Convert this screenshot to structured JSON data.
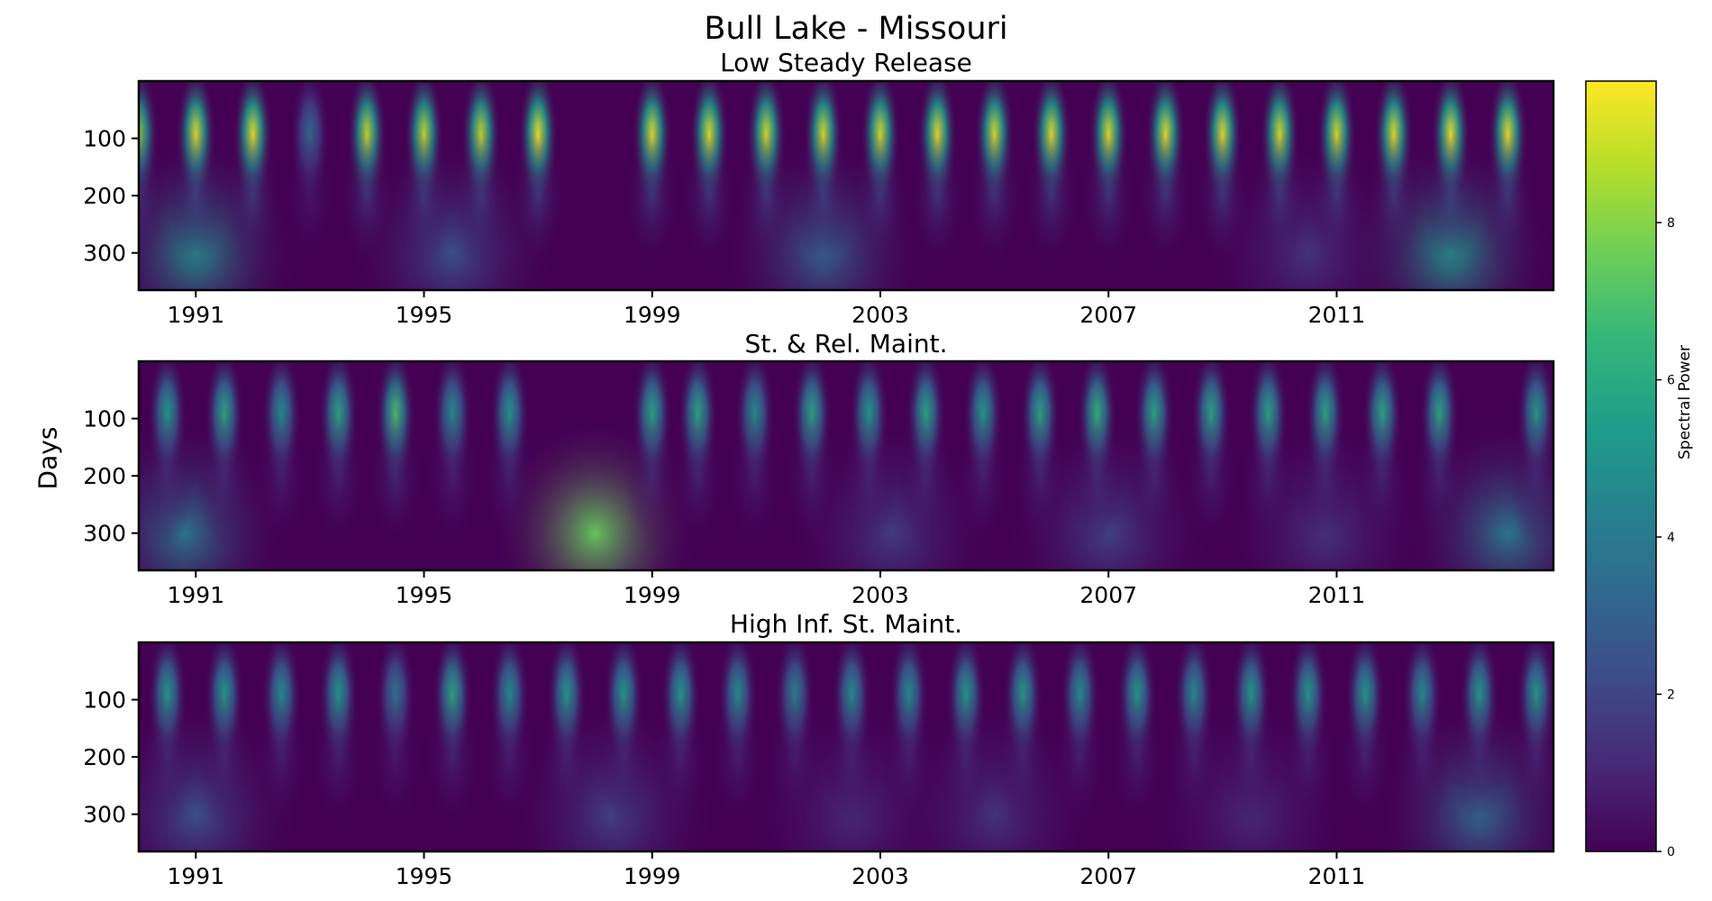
{
  "figure": {
    "title": "Bull Lake - Missouri",
    "ylabel": "Days"
  },
  "chart_data": [
    {
      "type": "heatmap",
      "title": "Low Steady Release",
      "x_ticks": [
        "1991",
        "1995",
        "1999",
        "2003",
        "2007",
        "2011"
      ],
      "y_ticks": [
        "100",
        "200",
        "300"
      ],
      "xlim": [
        1990,
        2014.8
      ],
      "ylim": [
        365,
        0
      ],
      "peaks": [
        {
          "x": 1990.0,
          "amp": 8.2
        },
        {
          "x": 1991.0,
          "amp": 9.5
        },
        {
          "x": 1992.0,
          "amp": 9.6
        },
        {
          "x": 1993.0,
          "amp": 3.5
        },
        {
          "x": 1994.0,
          "amp": 9.0
        },
        {
          "x": 1995.0,
          "amp": 9.0
        },
        {
          "x": 1996.0,
          "amp": 9.0
        },
        {
          "x": 1997.0,
          "amp": 9.8
        },
        {
          "x": 1999.0,
          "amp": 9.5
        },
        {
          "x": 2000.0,
          "amp": 9.5
        },
        {
          "x": 2001.0,
          "amp": 9.3
        },
        {
          "x": 2002.0,
          "amp": 9.3
        },
        {
          "x": 2003.0,
          "amp": 9.3
        },
        {
          "x": 2004.0,
          "amp": 9.5
        },
        {
          "x": 2005.0,
          "amp": 9.3
        },
        {
          "x": 2006.0,
          "amp": 9.5
        },
        {
          "x": 2007.0,
          "amp": 9.5
        },
        {
          "x": 2008.0,
          "amp": 9.5
        },
        {
          "x": 2009.0,
          "amp": 9.5
        },
        {
          "x": 2010.0,
          "amp": 9.3
        },
        {
          "x": 2011.0,
          "amp": 9.3
        },
        {
          "x": 2012.0,
          "amp": 9.5
        },
        {
          "x": 2013.0,
          "amp": 9.7
        },
        {
          "x": 2014.0,
          "amp": 9.7
        }
      ],
      "lowfreq": [
        {
          "x": 1991.0,
          "amp": 4.8
        },
        {
          "x": 1995.5,
          "amp": 2.5
        },
        {
          "x": 2002.0,
          "amp": 3.2
        },
        {
          "x": 2010.5,
          "amp": 1.5
        },
        {
          "x": 2013.0,
          "amp": 5.0
        }
      ]
    },
    {
      "type": "heatmap",
      "title": "St. & Rel. Maint.",
      "x_ticks": [
        "1991",
        "1995",
        "1999",
        "2003",
        "2007",
        "2011"
      ],
      "y_ticks": [
        "100",
        "200",
        "300"
      ],
      "xlim": [
        1990,
        2014.8
      ],
      "ylim": [
        365,
        0
      ],
      "peaks": [
        {
          "x": 1990.5,
          "amp": 5.5
        },
        {
          "x": 1991.5,
          "amp": 6.0
        },
        {
          "x": 1992.5,
          "amp": 5.0
        },
        {
          "x": 1993.5,
          "amp": 6.0
        },
        {
          "x": 1994.5,
          "amp": 7.0
        },
        {
          "x": 1995.5,
          "amp": 5.0
        },
        {
          "x": 1996.5,
          "amp": 5.5
        },
        {
          "x": 1999.0,
          "amp": 6.0
        },
        {
          "x": 1999.8,
          "amp": 6.0
        },
        {
          "x": 2000.8,
          "amp": 5.0
        },
        {
          "x": 2001.8,
          "amp": 6.0
        },
        {
          "x": 2002.8,
          "amp": 5.5
        },
        {
          "x": 2003.8,
          "amp": 6.0
        },
        {
          "x": 2004.8,
          "amp": 5.5
        },
        {
          "x": 2005.8,
          "amp": 6.0
        },
        {
          "x": 2006.8,
          "amp": 6.5
        },
        {
          "x": 2007.8,
          "amp": 6.0
        },
        {
          "x": 2008.8,
          "amp": 6.0
        },
        {
          "x": 2009.8,
          "amp": 6.0
        },
        {
          "x": 2010.8,
          "amp": 6.0
        },
        {
          "x": 2011.8,
          "amp": 6.0
        },
        {
          "x": 2012.8,
          "amp": 6.0
        },
        {
          "x": 2014.5,
          "amp": 5.5
        }
      ],
      "lowfreq": [
        {
          "x": 1990.8,
          "amp": 4.0
        },
        {
          "x": 1998.0,
          "amp": 7.5
        },
        {
          "x": 2003.2,
          "amp": 1.8
        },
        {
          "x": 2007.0,
          "amp": 2.0
        },
        {
          "x": 2010.8,
          "amp": 1.5
        },
        {
          "x": 2014.0,
          "amp": 4.0
        }
      ]
    },
    {
      "type": "heatmap",
      "title": "High Inf. St. Maint.",
      "x_ticks": [
        "1991",
        "1995",
        "1999",
        "2003",
        "2007",
        "2011"
      ],
      "y_ticks": [
        "100",
        "200",
        "300"
      ],
      "xlim": [
        1990,
        2014.8
      ],
      "ylim": [
        365,
        0
      ],
      "peaks": [
        {
          "x": 1990.5,
          "amp": 5.5
        },
        {
          "x": 1991.5,
          "amp": 5.5
        },
        {
          "x": 1992.5,
          "amp": 5.0
        },
        {
          "x": 1993.5,
          "amp": 5.5
        },
        {
          "x": 1994.5,
          "amp": 4.0
        },
        {
          "x": 1995.5,
          "amp": 6.0
        },
        {
          "x": 1996.5,
          "amp": 5.0
        },
        {
          "x": 1997.5,
          "amp": 5.5
        },
        {
          "x": 1998.5,
          "amp": 5.5
        },
        {
          "x": 1999.5,
          "amp": 5.5
        },
        {
          "x": 2000.5,
          "amp": 5.0
        },
        {
          "x": 2001.5,
          "amp": 4.5
        },
        {
          "x": 2002.5,
          "amp": 5.0
        },
        {
          "x": 2003.5,
          "amp": 5.0
        },
        {
          "x": 2004.5,
          "amp": 5.5
        },
        {
          "x": 2005.5,
          "amp": 5.5
        },
        {
          "x": 2006.5,
          "amp": 5.0
        },
        {
          "x": 2007.5,
          "amp": 5.5
        },
        {
          "x": 2008.5,
          "amp": 5.0
        },
        {
          "x": 2009.5,
          "amp": 5.5
        },
        {
          "x": 2010.5,
          "amp": 5.5
        },
        {
          "x": 2011.5,
          "amp": 5.5
        },
        {
          "x": 2012.5,
          "amp": 5.0
        },
        {
          "x": 2013.5,
          "amp": 5.5
        },
        {
          "x": 2014.5,
          "amp": 5.5
        }
      ],
      "lowfreq": [
        {
          "x": 1991.0,
          "amp": 2.5
        },
        {
          "x": 1998.3,
          "amp": 2.0
        },
        {
          "x": 2002.5,
          "amp": 1.2
        },
        {
          "x": 2005.0,
          "amp": 1.5
        },
        {
          "x": 2009.5,
          "amp": 1.2
        },
        {
          "x": 2013.5,
          "amp": 3.5
        }
      ]
    }
  ],
  "colorbar": {
    "label": "Spectral Power",
    "ticks": [
      "0",
      "2",
      "4",
      "6",
      "8"
    ],
    "range": [
      0,
      9.8
    ],
    "colormap": "viridis",
    "colors": [
      "#440154",
      "#3b528b",
      "#21918c",
      "#5ec962",
      "#fde725"
    ]
  }
}
